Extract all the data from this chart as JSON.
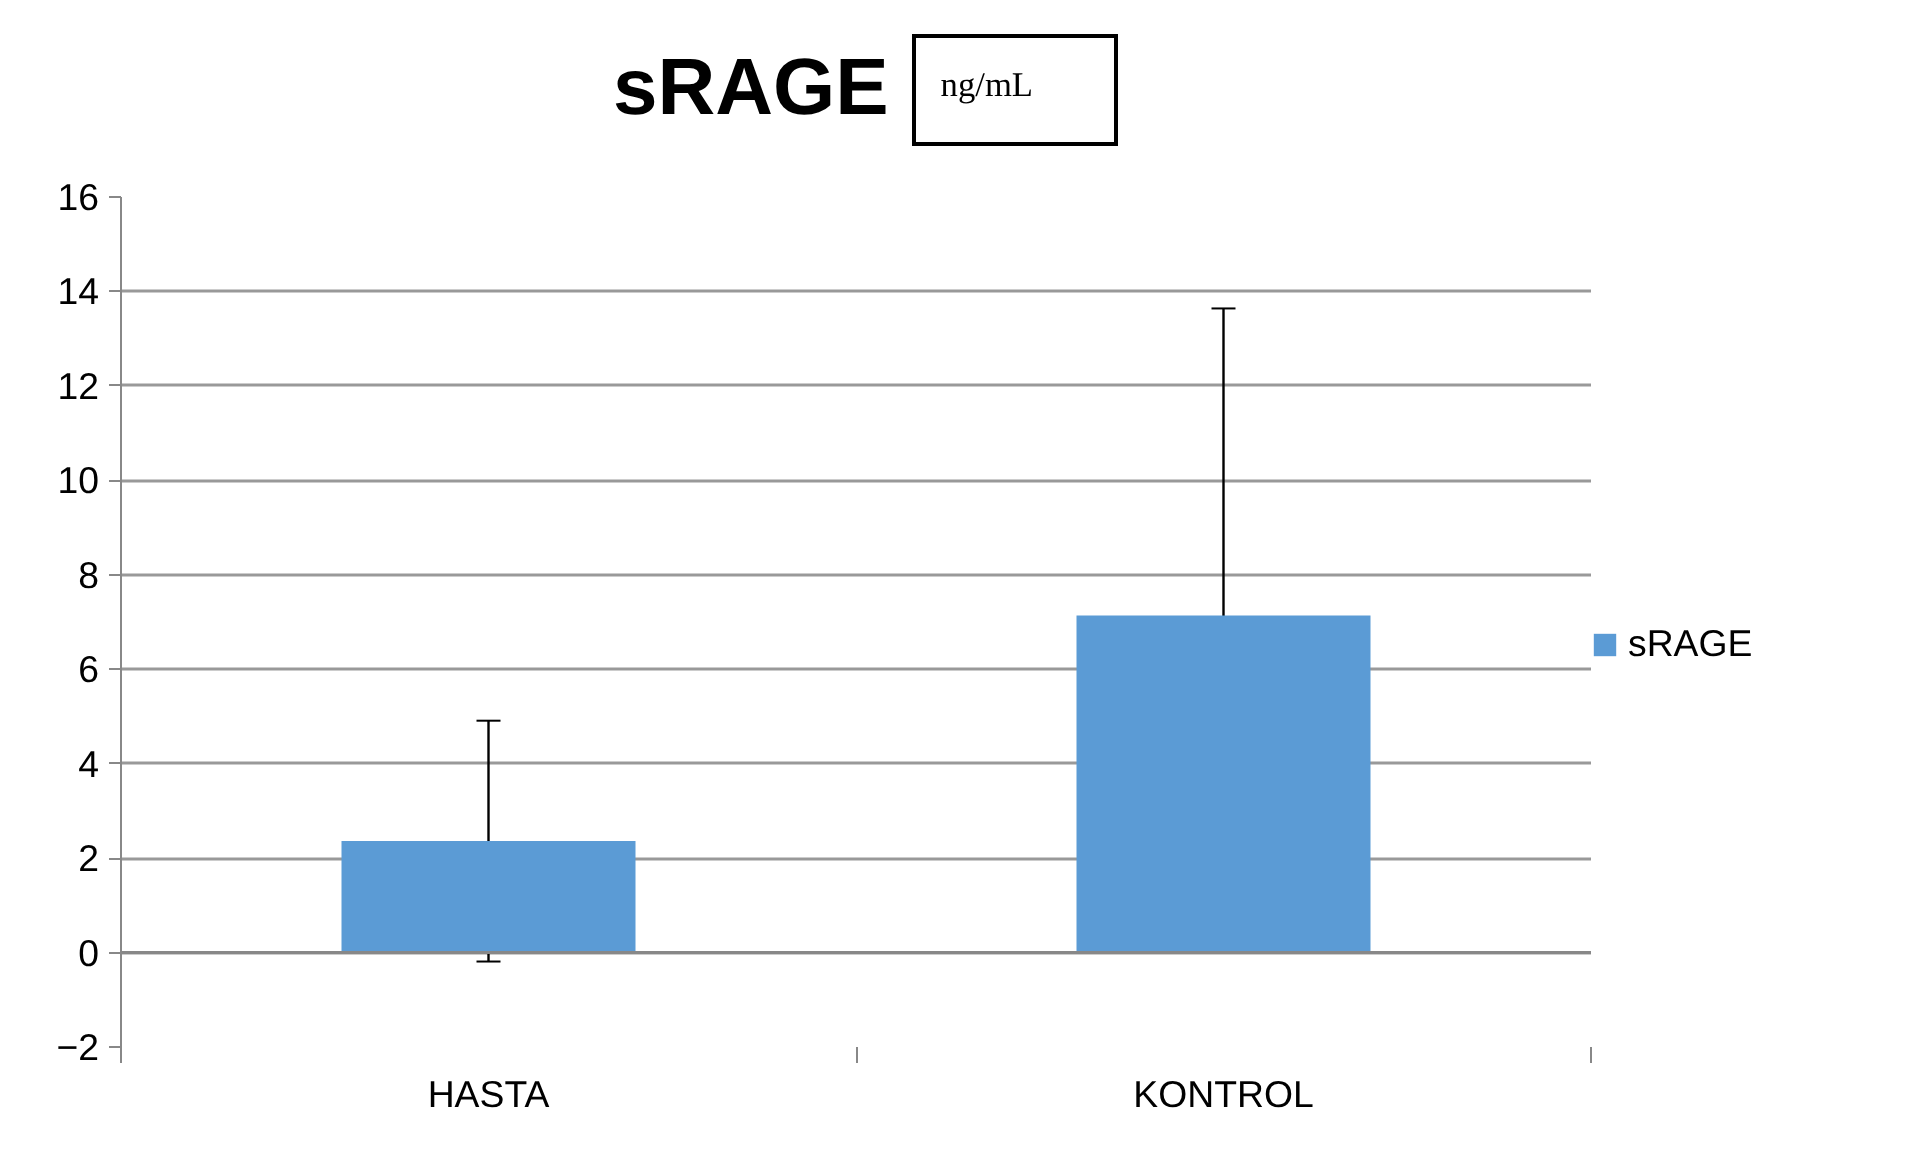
{
  "chart_data": {
    "type": "bar",
    "title": "sRAGE",
    "annotations": [
      "ng/mL"
    ],
    "categories": [
      "HASTA",
      "KONTROL"
    ],
    "series": [
      {
        "name": "sRAGE",
        "color": "#5b9bd5",
        "values": [
          2.36,
          7.14
        ],
        "errors": [
          2.55,
          6.5
        ]
      }
    ],
    "ylim": [
      -2,
      16
    ],
    "yticks": [
      -2,
      0,
      2,
      4,
      6,
      8,
      10,
      12,
      14,
      16
    ],
    "grid": "y",
    "legend": "right"
  }
}
